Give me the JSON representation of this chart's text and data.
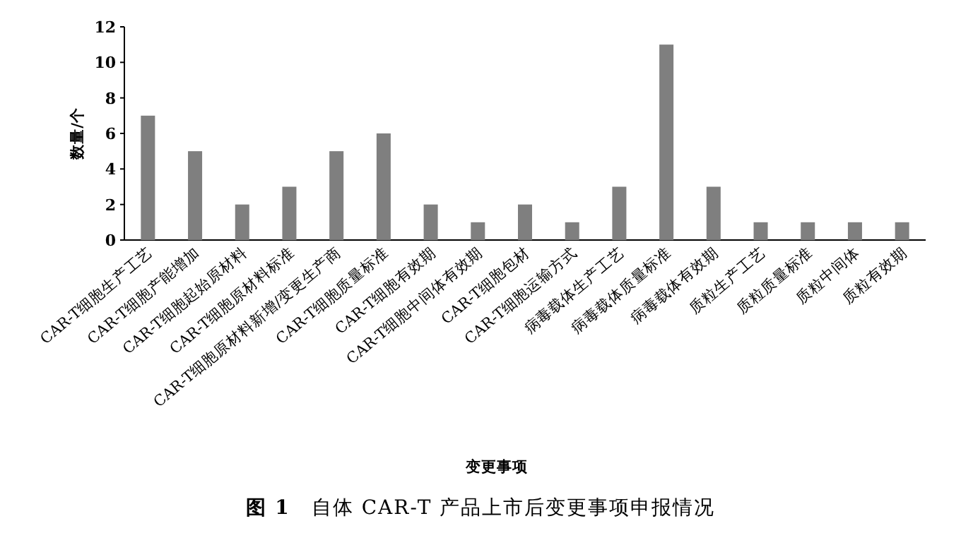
{
  "chart_data": {
    "type": "bar",
    "title": "**图 1**　自体 CAR-T 产品上市后变更事项申报情况",
    "xlabel": "变更事项",
    "ylabel": "数量/个",
    "categories": [
      "CAR-T细胞生产工艺",
      "CAR-T细胞产能增加",
      "CAR-T细胞起始原材料",
      "CAR-T细胞原材料标准",
      "CAR-T细胞原材料新增/变更生产商",
      "CAR-T细胞质量标准",
      "CAR-T细胞有效期",
      "CAR-T细胞中间体有效期",
      "CAR-T细胞包材",
      "CAR-T细胞运输方式",
      "病毒载体生产工艺",
      "病毒载体质量标准",
      "病毒载体有效期",
      "质粒生产工艺",
      "质粒质量标准",
      "质粒中间体",
      "质粒有效期"
    ],
    "values": [
      7,
      5,
      2,
      3,
      5,
      6,
      2,
      1,
      2,
      1,
      3,
      11,
      3,
      1,
      1,
      1,
      1
    ],
    "color": "#7f7f7f",
    "ylim": [
      0,
      12
    ],
    "yticks": [
      0,
      2,
      4,
      6,
      8,
      10,
      12
    ],
    "grid": false
  }
}
